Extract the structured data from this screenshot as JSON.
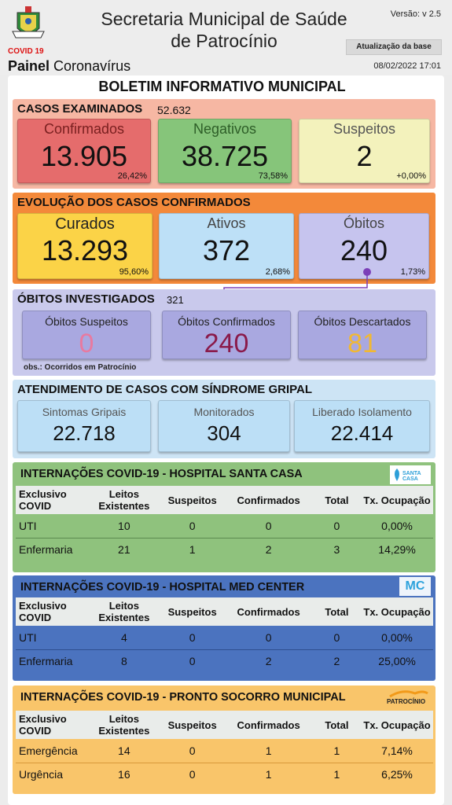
{
  "header": {
    "title_line1": "Secretaria Municipal de Saúde",
    "title_line2": "de Patrocínio",
    "version": "Versão: v 2.5",
    "update_button": "Atualização da base",
    "update_date": "08/02/2022 17:01",
    "logo_caption": "COVID 19",
    "painel_bold": "Painel",
    "painel_rest": "Coronavírus"
  },
  "bulletin_title": "BOLETIM INFORMATIVO MUNICIPAL",
  "casos_examinados": {
    "title": "CASOS EXAMINADOS",
    "count": "52.632",
    "confirmados": {
      "label": "Confirmados",
      "value": "13.905",
      "pct": "26,42%"
    },
    "negativos": {
      "label": "Negativos",
      "value": "38.725",
      "pct": "73,58%"
    },
    "suspeitos": {
      "label": "Suspeitos",
      "value": "2",
      "pct": "+0,00%"
    }
  },
  "evolucao": {
    "title": "EVOLUÇÃO DOS CASOS CONFIRMADOS",
    "curados": {
      "label": "Curados",
      "value": "13.293",
      "pct": "95,60%"
    },
    "ativos": {
      "label": "Ativos",
      "value": "372",
      "pct": "2,68%"
    },
    "obitos": {
      "label": "Óbitos",
      "value": "240",
      "pct": "1,73%"
    }
  },
  "obitos_investigados": {
    "title": "ÓBITOS INVESTIGADOS",
    "count": "321",
    "suspeitos": {
      "label": "Óbitos Suspeitos",
      "value": "0"
    },
    "confirmados": {
      "label": "Óbitos Confirmados",
      "value": "240"
    },
    "descartados": {
      "label": "Óbitos Descartados",
      "value": "81"
    },
    "note": "obs.: Ocorridos em Patrocínio"
  },
  "sindrome_gripal": {
    "title": "ATENDIMENTO DE CASOS COM SÍNDROME GRIPAL",
    "sintomas": {
      "label": "Sintomas Gripais",
      "value": "22.718"
    },
    "monitorados": {
      "label": "Monitorados",
      "value": "304"
    },
    "liberado": {
      "label": "Liberado Isolamento",
      "value": "22.414"
    }
  },
  "santa_casa": {
    "title": "INTERNAÇÕES COVID-19 - HOSPITAL SANTA CASA",
    "logo_text": "SANTA CASA",
    "headers": [
      "Exclusivo COVID",
      "Leitos Existentes",
      "Suspeitos",
      "Confirmados",
      "Total",
      "Tx. Ocupação"
    ],
    "rows": [
      [
        "UTI",
        "10",
        "0",
        "0",
        "0",
        "0,00%"
      ],
      [
        "Enfermaria",
        "21",
        "1",
        "2",
        "3",
        "14,29%"
      ]
    ]
  },
  "med_center": {
    "title": "INTERNAÇÕES COVID-19 - HOSPITAL MED CENTER",
    "logo_text": "MC",
    "headers": [
      "Exclusivo COVID",
      "Leitos Existentes",
      "Suspeitos",
      "Confirmados",
      "Total",
      "Tx. Ocupação"
    ],
    "rows": [
      [
        "UTI",
        "4",
        "0",
        "0",
        "0",
        "0,00%"
      ],
      [
        "Enfermaria",
        "8",
        "0",
        "2",
        "2",
        "25,00%"
      ]
    ]
  },
  "pronto_socorro": {
    "title": "INTERNAÇÕES COVID-19 - PRONTO SOCORRO MUNICIPAL",
    "logo_text": "PATROCÍNIO",
    "headers": [
      "Exclusivo COVID",
      "Leitos Existentes",
      "Suspeitos",
      "Confirmados",
      "Total",
      "Tx. Ocupação"
    ],
    "rows": [
      [
        "Emergência",
        "14",
        "0",
        "1",
        "1",
        "7,14%"
      ],
      [
        "Urgência",
        "16",
        "0",
        "1",
        "1",
        "6,25%"
      ]
    ]
  }
}
